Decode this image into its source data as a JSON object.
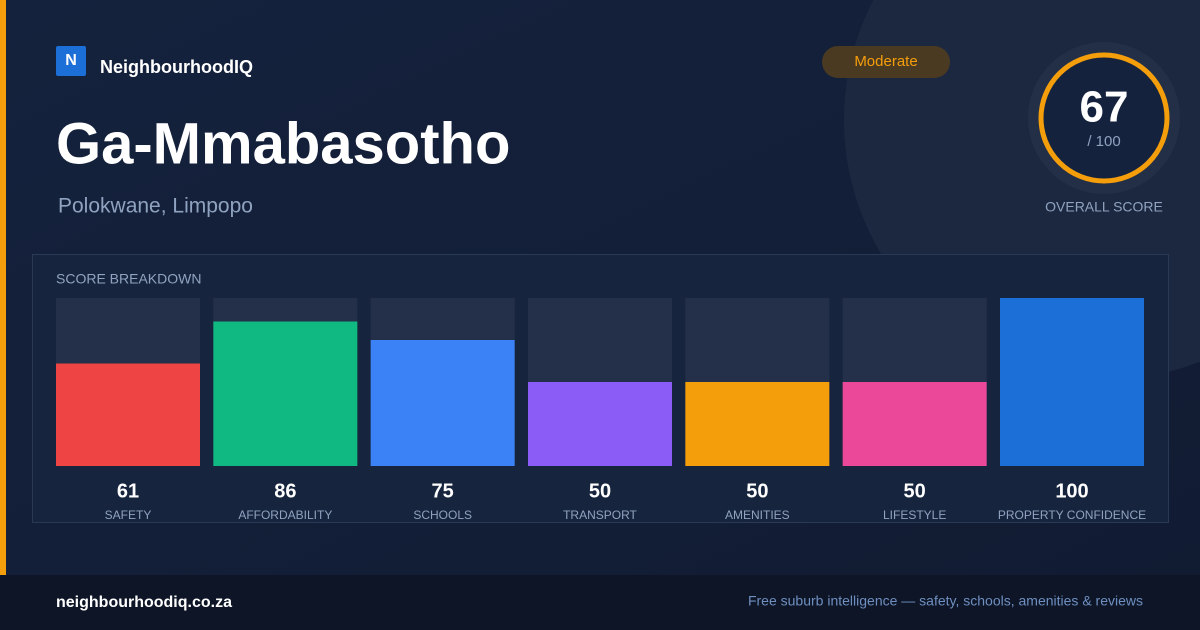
{
  "brand": {
    "logo": "N",
    "name": "NeighbourhoodIQ"
  },
  "header": {
    "title": "Ga-Mmabasotho",
    "subtitle": "Polokwane, Limpopo",
    "badge": "Moderate"
  },
  "score": {
    "value": 67,
    "out_of": "/ 100",
    "label": "OVERALL SCORE"
  },
  "chart_data": {
    "type": "bar",
    "title": "SCORE BREAKDOWN",
    "categories": [
      "SAFETY",
      "AFFORDABILITY",
      "SCHOOLS",
      "TRANSPORT",
      "AMENITIES",
      "LIFESTYLE",
      "PROPERTY CONFIDENCE"
    ],
    "values": [
      61,
      86,
      75,
      50,
      50,
      50,
      100
    ],
    "colors": [
      "#ef4444",
      "#10b981",
      "#3b82f6",
      "#8b5cf6",
      "#f59e0b",
      "#ec4899",
      "#1d6fd8"
    ],
    "ylim": [
      0,
      100
    ]
  },
  "footer": {
    "site": "neighbourhoodiq.co.za",
    "tagline": "Free suburb intelligence — safety, schools, amenities & reviews"
  }
}
